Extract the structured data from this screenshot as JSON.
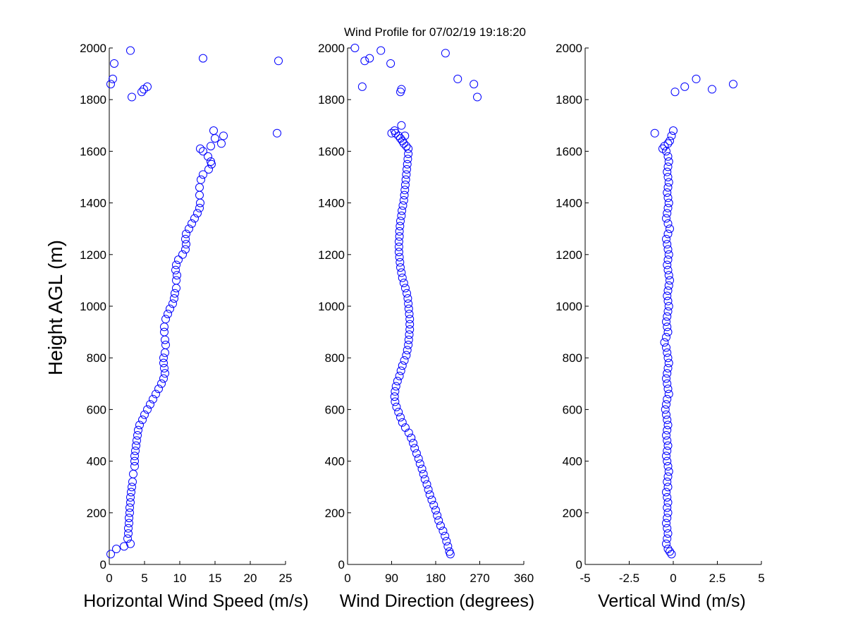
{
  "chart_data": {
    "type": "scatter",
    "title": "Wind Profile for  07/02/19 19:18:20",
    "ylabel": "Height AGL (m)",
    "marker_color": "#0000ff",
    "marker": "circle",
    "panels": [
      {
        "xlabel": "Horizontal Wind Speed (m/s)",
        "xlim": [
          0,
          25
        ],
        "ylim": [
          0,
          2000
        ],
        "xticks": [
          "0",
          "5",
          "10",
          "15",
          "20",
          "25"
        ],
        "xtick_values": [
          0,
          5,
          10,
          15,
          20,
          25
        ],
        "yticks": [
          "0",
          "200",
          "400",
          "600",
          "800",
          "1000",
          "1200",
          "1400",
          "1600",
          "1800",
          "2000"
        ],
        "series": [
          {
            "x": [
              0.2,
              1,
              2.1,
              3,
              2.6,
              2.7,
              2.7,
              2.8,
              2.8,
              2.9,
              2.9,
              3.0,
              3.0,
              3.1,
              3.2,
              3.3,
              3.4,
              3.6,
              3.6,
              3.6,
              3.7,
              3.8,
              3.9,
              4.0,
              4.1,
              4.3,
              4.7,
              5.0,
              5.4,
              5.8,
              6.2,
              6.6,
              7.0,
              7.4,
              7.7,
              7.9,
              7.8,
              7.7,
              7.7,
              7.9,
              8.0,
              7.9,
              7.8,
              7.8,
              8.0,
              8.3,
              8.6,
              9.0,
              9.2,
              9.3,
              9.5,
              9.5,
              9.6,
              9.4,
              9.5,
              9.8,
              10.4,
              10.8,
              10.9,
              10.8,
              10.9,
              11.3,
              11.7,
              12.1,
              12.5,
              12.8,
              12.9,
              12.8,
              12.8,
              13.0,
              13.3,
              14.1,
              14.5,
              14.4,
              14.0,
              12.9,
              13.3,
              14.4,
              15.9,
              15.0,
              16.2,
              14.8,
              23.8,
              3.2,
              4.6,
              4.9,
              5.4,
              0.2,
              0.5,
              24.0,
              13.3,
              0.7,
              3.0
            ],
            "y": [
              40,
              60,
              70,
              80,
              100,
              120,
              140,
              160,
              180,
              200,
              220,
              240,
              260,
              280,
              300,
              320,
              350,
              380,
              400,
              420,
              440,
              460,
              480,
              500,
              520,
              540,
              560,
              580,
              600,
              620,
              640,
              660,
              680,
              700,
              720,
              740,
              760,
              780,
              800,
              820,
              850,
              870,
              900,
              920,
              950,
              970,
              990,
              1010,
              1030,
              1050,
              1070,
              1100,
              1120,
              1140,
              1160,
              1180,
              1200,
              1220,
              1240,
              1260,
              1280,
              1300,
              1320,
              1340,
              1360,
              1380,
              1400,
              1430,
              1460,
              1490,
              1510,
              1530,
              1550,
              1560,
              1580,
              1610,
              1600,
              1620,
              1630,
              1650,
              1660,
              1680,
              1670,
              1810,
              1830,
              1840,
              1850,
              1860,
              1880,
              1950,
              1960,
              1940,
              1990
            ]
          }
        ]
      },
      {
        "xlabel": "Wind Direction (degrees)",
        "xlim": [
          0,
          360
        ],
        "ylim": [
          0,
          2000
        ],
        "xticks": [
          "0",
          "90",
          "180",
          "270",
          "360"
        ],
        "xtick_values": [
          0,
          90,
          180,
          270,
          360
        ],
        "yticks": [
          "0",
          "200",
          "400",
          "600",
          "800",
          "1000",
          "1200",
          "1400",
          "1600",
          "1800",
          "2000"
        ],
        "series": [
          {
            "x": [
              210,
              208,
              205,
              202,
              199,
              195,
              190,
              186,
              183,
              180,
              176,
              172,
              168,
              165,
              162,
              158,
              155,
              152,
              148,
              145,
              141,
              137,
              134,
              130,
              125,
              118,
              112,
              108,
              104,
              100,
              97,
              96,
              97,
              99,
              102,
              106,
              109,
              112,
              116,
              120,
              122,
              124,
              125,
              126,
              127,
              127,
              127,
              126,
              125,
              124,
              123,
              121,
              118,
              115,
              112,
              110,
              108,
              107,
              106,
              105,
              105,
              105,
              106,
              106,
              107,
              108,
              110,
              111,
              113,
              115,
              116,
              117,
              118,
              119,
              120,
              121,
              122,
              123,
              124,
              124,
              120,
              115,
              112,
              108,
              104,
              98,
              96,
              90,
              117,
              110,
              108,
              30,
              15,
              35,
              45,
              68,
              88,
              200,
              225,
              258,
              265,
              110
            ],
            "y": [
              40,
              50,
              70,
              90,
              110,
              130,
              150,
              170,
              190,
              210,
              230,
              250,
              270,
              290,
              310,
              330,
              350,
              370,
              390,
              410,
              430,
              450,
              470,
              490,
              510,
              530,
              550,
              570,
              590,
              610,
              630,
              650,
              670,
              690,
              710,
              730,
              750,
              770,
              790,
              810,
              830,
              850,
              870,
              890,
              910,
              930,
              950,
              970,
              990,
              1010,
              1030,
              1050,
              1070,
              1090,
              1110,
              1130,
              1150,
              1170,
              1190,
              1210,
              1230,
              1250,
              1270,
              1290,
              1310,
              1330,
              1350,
              1370,
              1390,
              1410,
              1430,
              1450,
              1470,
              1490,
              1510,
              1530,
              1550,
              1570,
              1590,
              1610,
              1620,
              1630,
              1640,
              1650,
              1660,
              1670,
              1680,
              1670,
              1660,
              1840,
              1830,
              1850,
              2000,
              1950,
              1960,
              1990,
              1940,
              1980,
              1880,
              1860,
              1810,
              1700
            ]
          }
        ]
      },
      {
        "xlabel": "Vertical Wind (m/s)",
        "xlim": [
          -5,
          5
        ],
        "ylim": [
          0,
          2000
        ],
        "xticks": [
          "-5",
          "-2.5",
          "0",
          "2.5",
          "5"
        ],
        "xtick_values": [
          -5,
          -2.5,
          0,
          2.5,
          5
        ],
        "yticks": [
          "0",
          "200",
          "400",
          "600",
          "800",
          "1000",
          "1200",
          "1400",
          "1600",
          "1800",
          "2000"
        ],
        "series": [
          {
            "x": [
              -0.1,
              -0.2,
              -0.3,
              -0.4,
              -0.35,
              -0.3,
              -0.35,
              -0.4,
              -0.35,
              -0.3,
              -0.35,
              -0.3,
              -0.35,
              -0.4,
              -0.3,
              -0.35,
              -0.3,
              -0.25,
              -0.3,
              -0.35,
              -0.4,
              -0.35,
              -0.3,
              -0.35,
              -0.4,
              -0.35,
              -0.3,
              -0.35,
              -0.4,
              -0.45,
              -0.4,
              -0.35,
              -0.25,
              -0.3,
              -0.35,
              -0.4,
              -0.35,
              -0.3,
              -0.25,
              -0.3,
              -0.35,
              -0.4,
              -0.5,
              -0.4,
              -0.3,
              -0.35,
              -0.4,
              -0.35,
              -0.3,
              -0.25,
              -0.3,
              -0.35,
              -0.3,
              -0.25,
              -0.2,
              -0.25,
              -0.3,
              -0.35,
              -0.3,
              -0.25,
              -0.3,
              -0.35,
              -0.4,
              -0.3,
              -0.2,
              -0.3,
              -0.4,
              -0.35,
              -0.3,
              -0.25,
              -0.3,
              -0.35,
              -0.3,
              -0.25,
              -0.3,
              -0.35,
              -0.3,
              -0.25,
              -0.3,
              -0.4,
              -0.6,
              -0.5,
              -0.3,
              -0.2,
              -0.1,
              0.0,
              -1.05,
              0.1,
              0.65,
              1.3,
              2.2,
              3.4
            ],
            "y": [
              40,
              50,
              60,
              80,
              100,
              120,
              140,
              160,
              180,
              200,
              220,
              240,
              260,
              280,
              300,
              320,
              340,
              360,
              380,
              400,
              420,
              440,
              460,
              480,
              500,
              520,
              540,
              560,
              580,
              600,
              620,
              640,
              660,
              680,
              700,
              720,
              740,
              760,
              780,
              800,
              820,
              840,
              860,
              880,
              900,
              920,
              940,
              960,
              980,
              1000,
              1020,
              1040,
              1060,
              1080,
              1100,
              1120,
              1140,
              1160,
              1180,
              1200,
              1220,
              1240,
              1260,
              1280,
              1300,
              1320,
              1340,
              1360,
              1380,
              1400,
              1420,
              1440,
              1460,
              1480,
              1500,
              1520,
              1540,
              1560,
              1580,
              1600,
              1610,
              1620,
              1630,
              1640,
              1660,
              1680,
              1670,
              1830,
              1850,
              1880,
              1840,
              1860
            ]
          }
        ]
      }
    ]
  }
}
